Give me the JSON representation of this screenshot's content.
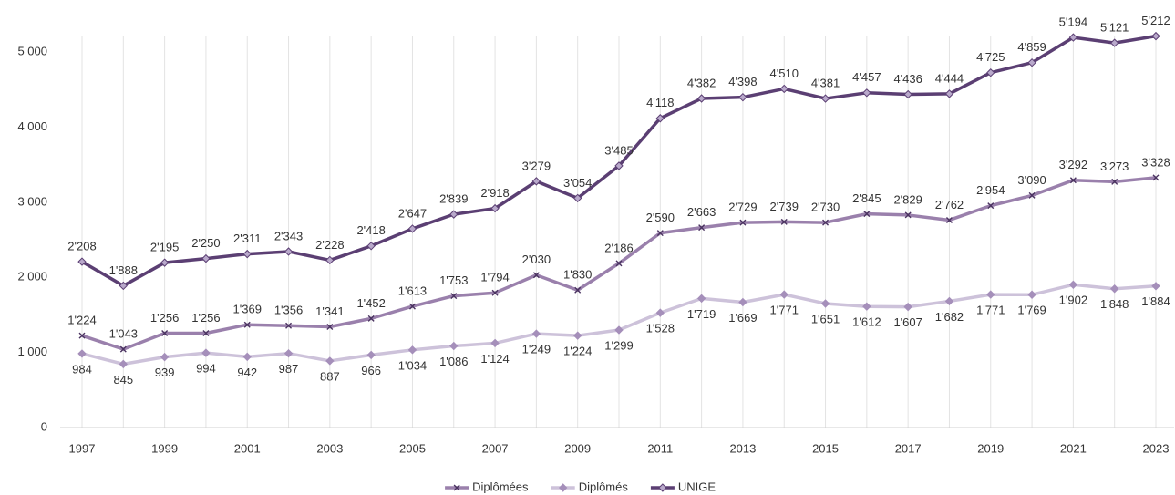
{
  "chart_data": {
    "type": "line",
    "x": [
      1997,
      1998,
      1999,
      2000,
      2001,
      2002,
      2003,
      2004,
      2005,
      2006,
      2007,
      2008,
      2009,
      2010,
      2011,
      2012,
      2013,
      2014,
      2015,
      2016,
      2017,
      2018,
      2019,
      2020,
      2021,
      2022,
      2023
    ],
    "xlim": [
      1997,
      2023
    ],
    "xticks": [
      1997,
      1999,
      2001,
      2003,
      2005,
      2007,
      2009,
      2011,
      2013,
      2015,
      2017,
      2019,
      2021,
      2023
    ],
    "ylim": [
      0,
      5450
    ],
    "yticks": [
      0,
      {
        "value": 1000,
        "label": "1 000"
      },
      {
        "value": 2000,
        "label": "2 000"
      },
      {
        "value": 3000,
        "label": "3 000"
      },
      {
        "value": 4000,
        "label": "4 000"
      },
      {
        "value": 5000,
        "label": "5 000"
      }
    ],
    "grid": "x",
    "legend": "bottom",
    "series": [
      {
        "name": "Diplômées",
        "color": "#9a80ac",
        "marker": "x",
        "label_position": "above",
        "values": [
          1224,
          1043,
          1256,
          1256,
          1369,
          1356,
          1341,
          1452,
          1613,
          1753,
          1794,
          2030,
          1830,
          2186,
          2590,
          2663,
          2729,
          2739,
          2730,
          2845,
          2829,
          2762,
          2954,
          3090,
          3292,
          3273,
          3328
        ],
        "value_labels": [
          "1'224",
          "1'043",
          "1'256",
          "1'256",
          "1'369",
          "1'356",
          "1'341",
          "1'452",
          "1'613",
          "1'753",
          "1'794",
          "2'030",
          "1'830",
          "2'186",
          "2'590",
          "2'663",
          "2'729",
          "2'739",
          "2'730",
          "2'845",
          "2'829",
          "2'762",
          "2'954",
          "3'090",
          "3'292",
          "3'273",
          "3'328"
        ]
      },
      {
        "name": "Diplômés",
        "color": "#cdc2da",
        "marker": "diamond",
        "label_position": "below",
        "values": [
          984,
          845,
          939,
          994,
          942,
          987,
          887,
          966,
          1034,
          1086,
          1124,
          1249,
          1224,
          1299,
          1528,
          1719,
          1669,
          1771,
          1651,
          1612,
          1607,
          1682,
          1771,
          1769,
          1902,
          1848,
          1884
        ],
        "value_labels": [
          "984",
          "845",
          "939",
          "994",
          "942",
          "987",
          "887",
          "966",
          "1'034",
          "1'086",
          "1'124",
          "1'249",
          "1'224",
          "1'299",
          "1'528",
          "1'719",
          "1'669",
          "1'771",
          "1'651",
          "1'612",
          "1'607",
          "1'682",
          "1'771",
          "1'769",
          "1'902",
          "1'848",
          "1'884"
        ]
      },
      {
        "name": "UNIGE",
        "color": "#5b3f73",
        "marker": "diamond",
        "label_position": "above",
        "values": [
          2208,
          1888,
          2195,
          2250,
          2311,
          2343,
          2228,
          2418,
          2647,
          2839,
          2918,
          3279,
          3054,
          3485,
          4118,
          4382,
          4398,
          4510,
          4381,
          4457,
          4436,
          4444,
          4725,
          4859,
          5194,
          5121,
          5212
        ],
        "value_labels": [
          "2'208",
          "1'888",
          "2'195",
          "2'250",
          "2'311",
          "2'343",
          "2'228",
          "2'418",
          "2'647",
          "2'839",
          "2'918",
          "3'279",
          "3'054",
          "3'485",
          "4'118",
          "4'382",
          "4'398",
          "4'510",
          "4'381",
          "4'457",
          "4'436",
          "4'444",
          "4'725",
          "4'859",
          "5'194",
          "5'121",
          "5'212"
        ]
      }
    ]
  }
}
